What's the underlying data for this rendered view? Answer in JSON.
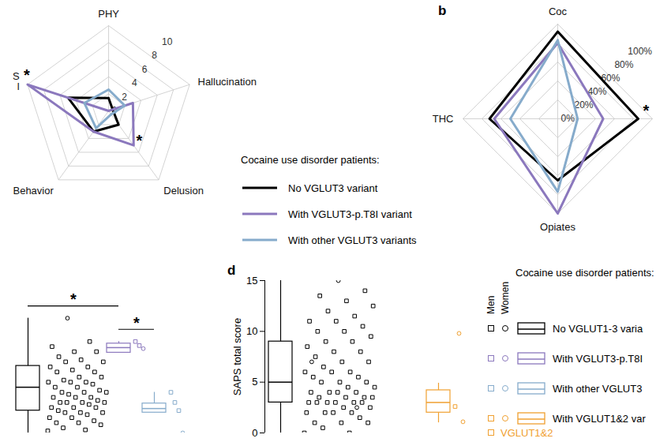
{
  "chart_data": [
    {
      "type": "radar",
      "categories": [
        "PHY",
        "Hallucination",
        "Delusion",
        "Behavior",
        "S\nl"
      ],
      "ylim": [
        0,
        10
      ],
      "yticks": [
        0,
        2,
        4,
        6,
        8,
        10
      ],
      "grid": true,
      "series": [
        {
          "name": "No VGLUT3 variant",
          "color": "#000000",
          "values": [
            1.5,
            0.5,
            2,
            3,
            5
          ]
        },
        {
          "name": "With VGLUT3-p.T8I variant",
          "color": "#8b78bd",
          "values": [
            0,
            3,
            5,
            3,
            10
          ]
        },
        {
          "name": "With other VGLUT3 variants",
          "color": "#86abcb",
          "values": [
            2.5,
            2,
            0.5,
            2.5,
            3
          ]
        }
      ],
      "annotations": [
        {
          "text": "*",
          "axis_index": 2
        },
        {
          "text": "*",
          "axis_index": 4
        }
      ],
      "legend_title": "Cocaine use disorder patients:"
    },
    {
      "type": "radar",
      "panel_label": "b",
      "categories": [
        "Coc",
        null,
        "Opiates",
        "THC"
      ],
      "ylim": [
        0,
        100
      ],
      "yticks": [
        {
          "value": 0,
          "label": "0%"
        },
        {
          "value": 20,
          "label": "20%"
        },
        {
          "value": 40,
          "label": "40%"
        },
        {
          "value": 60,
          "label": "60%"
        },
        {
          "value": 80,
          "label": "80%"
        },
        {
          "value": 100,
          "label": "100%"
        }
      ],
      "grid": true,
      "series": [
        {
          "name": "No VGLUT3 variant",
          "color": "#000000",
          "values": [
            92,
            85,
            65,
            72
          ]
        },
        {
          "name": "With VGLUT3-p.T8I variant",
          "color": "#8b78bd",
          "values": [
            80,
            48,
            100,
            67
          ]
        },
        {
          "name": "With other VGLUT3 variants",
          "color": "#86abcb",
          "values": [
            83,
            21,
            77,
            50
          ]
        }
      ],
      "annotations": [
        {
          "text": "*",
          "axis_index": 1
        }
      ]
    },
    {
      "type": "box",
      "tick_labels": false,
      "ylim": [
        0,
        15
      ],
      "series": [
        {
          "color": "#000000",
          "box": [
            0,
            2.2,
            4.5,
            6.6,
            11.3
          ],
          "men": [
            0.2,
            0.3,
            0.5,
            0.8,
            1,
            1,
            1.2,
            1.5,
            1.5,
            1.8,
            2,
            2,
            2,
            2.2,
            2.5,
            2.5,
            2.5,
            2.8,
            3,
            3,
            3,
            3,
            3.2,
            3.5,
            3.5,
            3.5,
            3.8,
            4,
            4,
            4,
            4.2,
            4.5,
            4.5,
            4.8,
            5,
            5,
            5,
            5.2,
            5.5,
            5.5,
            6,
            6,
            6.2,
            6.5,
            6.5,
            7,
            7,
            7.2,
            7.5,
            8,
            8,
            8.5,
            9
          ],
          "women": [
            11.3
          ]
        },
        {
          "color": "#8b78bd",
          "box": [
            7.9,
            7.9,
            8.4,
            8.8,
            9.0
          ],
          "men": [
            9.0,
            8.6
          ],
          "women": [
            8.3
          ]
        },
        {
          "color": "#86abcb",
          "box": [
            2.0,
            2.0,
            2.4,
            2.9,
            4.0
          ],
          "men": [
            4.0,
            3.0,
            2.2
          ],
          "women": [
            0
          ]
        }
      ],
      "annotations": [
        {
          "text": "*",
          "groups": [
            0,
            1
          ]
        },
        {
          "text": "*",
          "groups": [
            1,
            2
          ]
        }
      ]
    },
    {
      "type": "box",
      "panel_label": "d",
      "y_label": "SAPS total score",
      "ylim": [
        0,
        15
      ],
      "yticks": [
        0,
        5,
        10,
        15
      ],
      "series": [
        {
          "color": "#000000",
          "box": [
            0,
            3,
            5,
            9,
            15
          ],
          "men": [
            0,
            0,
            0.5,
            1,
            1,
            1,
            1.5,
            2,
            2,
            2,
            2,
            2.5,
            2.5,
            3,
            3,
            3,
            3,
            3,
            3,
            3.5,
            3.5,
            3.5,
            3.5,
            4,
            4,
            4,
            4,
            4.5,
            4.5,
            5,
            5,
            5,
            5.5,
            5.5,
            6,
            6,
            6,
            6.5,
            7,
            7,
            7.5,
            8,
            8,
            8.5,
            9,
            9,
            9.5,
            10,
            10,
            10.5,
            11,
            11,
            11.5,
            12,
            12.5,
            13,
            13.5,
            14
          ],
          "women": [
            15,
            7,
            2.5
          ]
        },
        {
          "color": "#f0a030",
          "box": [
            1,
            2,
            3,
            4.2,
            4.9
          ],
          "men": [
            2.6
          ],
          "women": [
            9.8,
            1.1
          ]
        }
      ],
      "legend_title": "Cocaine use disorder patients:",
      "legend_headers": [
        "Men",
        "Women"
      ],
      "legend_entries": [
        {
          "name": "No VGLUT1-3 varia",
          "color": "#000000"
        },
        {
          "name": "With VGLUT3-p.T8I",
          "color": "#8b78bd"
        },
        {
          "name": "With other VGLUT3",
          "color": "#86abcb"
        },
        {
          "name": "With VGLUT1&2 var",
          "color": "#f0a030"
        }
      ],
      "annotations": [
        {
          "text": "VGLUT1&2",
          "color": "#f0a030"
        }
      ]
    }
  ]
}
